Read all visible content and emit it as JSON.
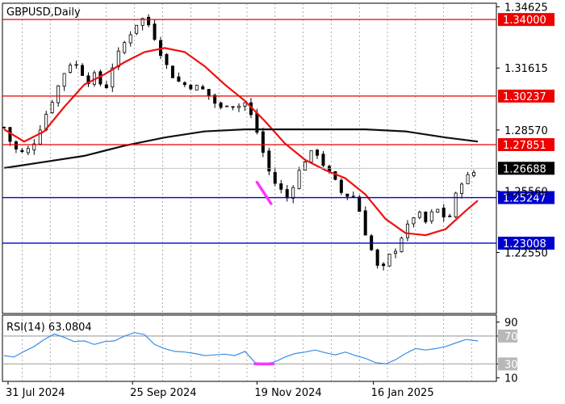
{
  "chart_data": [
    {
      "type": "candlestick",
      "symbol_label": "GBPUSD,Daily",
      "ylim": [
        1.1955,
        1.348
      ],
      "y_ticks": [
        "1.34625",
        "1.31615",
        "1.28570",
        "1.25560",
        "1.22550"
      ],
      "x_ticks": [
        "31 Jul 2024",
        "25 Sep 2024",
        "19 Nov 2024",
        "16 Jan 2025"
      ],
      "current_price": "1.26688",
      "levels": [
        {
          "label": "1.34000",
          "value": 1.34,
          "color": "#ee0000"
        },
        {
          "label": "1.30237",
          "value": 1.30237,
          "color": "#ee0000"
        },
        {
          "label": "1.27851",
          "value": 1.27851,
          "color": "#ee0000"
        },
        {
          "label": "1.25247",
          "value": 1.25247,
          "color": "#0000cc"
        },
        {
          "label": "1.23008",
          "value": 1.23008,
          "color": "#0000cc"
        }
      ],
      "close_path": [
        [
          0,
          1.287
        ],
        [
          4,
          1.278
        ],
        [
          8,
          1.274
        ],
        [
          12,
          1.276
        ],
        [
          15,
          1.28
        ],
        [
          18,
          1.287
        ],
        [
          22,
          1.296
        ],
        [
          26,
          1.305
        ],
        [
          30,
          1.314
        ],
        [
          34,
          1.32
        ],
        [
          38,
          1.315
        ],
        [
          42,
          1.31
        ],
        [
          46,
          1.313
        ],
        [
          50,
          1.304
        ],
        [
          54,
          1.317
        ],
        [
          58,
          1.325
        ],
        [
          62,
          1.332
        ],
        [
          66,
          1.338
        ],
        [
          70,
          1.341
        ],
        [
          74,
          1.334
        ],
        [
          78,
          1.324
        ],
        [
          82,
          1.315
        ],
        [
          86,
          1.31
        ],
        [
          90,
          1.308
        ],
        [
          95,
          1.307
        ],
        [
          100,
          1.305
        ],
        [
          104,
          1.3
        ],
        [
          108,
          1.296
        ],
        [
          112,
          1.3
        ],
        [
          116,
          1.296
        ],
        [
          119,
          1.301
        ],
        [
          122,
          1.295
        ],
        [
          125,
          1.288
        ],
        [
          128,
          1.278
        ],
        [
          131,
          1.268
        ],
        [
          134,
          1.26
        ],
        [
          137,
          1.259
        ],
        [
          140,
          1.25
        ],
        [
          143,
          1.257
        ],
        [
          146,
          1.263
        ],
        [
          149,
          1.27
        ],
        [
          152,
          1.273
        ],
        [
          155,
          1.276
        ],
        [
          158,
          1.271
        ],
        [
          161,
          1.265
        ],
        [
          164,
          1.262
        ],
        [
          167,
          1.256
        ],
        [
          170,
          1.253
        ],
        [
          173,
          1.255
        ],
        [
          176,
          1.25
        ],
        [
          179,
          1.238
        ],
        [
          182,
          1.23
        ],
        [
          185,
          1.22
        ],
        [
          188,
          1.215
        ],
        [
          191,
          1.223
        ],
        [
          194,
          1.225
        ],
        [
          197,
          1.232
        ],
        [
          200,
          1.236
        ],
        [
          203,
          1.242
        ],
        [
          206,
          1.246
        ],
        [
          209,
          1.239
        ],
        [
          212,
          1.243
        ],
        [
          215,
          1.247
        ],
        [
          218,
          1.245
        ],
        [
          221,
          1.24
        ],
        [
          224,
          1.25
        ],
        [
          227,
          1.26
        ],
        [
          230,
          1.262
        ],
        [
          233,
          1.264
        ],
        [
          236,
          1.2669
        ]
      ],
      "series": [
        {
          "name": "",
          "color": "#ee1111",
          "points": [
            [
              0,
              1.286
            ],
            [
              10,
              1.28
            ],
            [
              20,
              1.285
            ],
            [
              30,
              1.297
            ],
            [
              40,
              1.308
            ],
            [
              50,
              1.313
            ],
            [
              60,
              1.319
            ],
            [
              70,
              1.324
            ],
            [
              80,
              1.326
            ],
            [
              90,
              1.324
            ],
            [
              100,
              1.317
            ],
            [
              110,
              1.308
            ],
            [
              120,
              1.3
            ],
            [
              130,
              1.29
            ],
            [
              140,
              1.279
            ],
            [
              150,
              1.271
            ],
            [
              160,
              1.266
            ],
            [
              170,
              1.262
            ],
            [
              180,
              1.254
            ],
            [
              190,
              1.242
            ],
            [
              200,
              1.235
            ],
            [
              210,
              1.234
            ],
            [
              220,
              1.237
            ],
            [
              230,
              1.246
            ],
            [
              236,
              1.251
            ]
          ]
        },
        {
          "name": "",
          "color": "#111111",
          "points": [
            [
              0,
              1.267
            ],
            [
              20,
              1.27
            ],
            [
              40,
              1.273
            ],
            [
              60,
              1.278
            ],
            [
              80,
              1.282
            ],
            [
              100,
              1.285
            ],
            [
              120,
              1.286
            ],
            [
              140,
              1.286
            ],
            [
              160,
              1.286
            ],
            [
              180,
              1.286
            ],
            [
              200,
              1.285
            ],
            [
              220,
              1.282
            ],
            [
              236,
              1.28
            ]
          ]
        }
      ],
      "annotations": [
        {
          "type": "segment",
          "color": "#ff33ff",
          "from": [
            126,
            1.26
          ],
          "to": [
            133,
            1.2495
          ]
        }
      ]
    },
    {
      "type": "line",
      "title": "RSI(14) 63.0804",
      "ylim": [
        5,
        100
      ],
      "y_ticks": [
        "90",
        "70",
        "30",
        "10"
      ],
      "levels": [
        70,
        30
      ],
      "series": [
        {
          "name": "",
          "color": "#3a8ee6",
          "points": [
            [
              0,
              42
            ],
            [
              5,
              40
            ],
            [
              10,
              48
            ],
            [
              15,
              55
            ],
            [
              20,
              65
            ],
            [
              25,
              73
            ],
            [
              30,
              68
            ],
            [
              35,
              62
            ],
            [
              40,
              63
            ],
            [
              45,
              58
            ],
            [
              50,
              62
            ],
            [
              55,
              63
            ],
            [
              60,
              70
            ],
            [
              65,
              75
            ],
            [
              70,
              72
            ],
            [
              75,
              58
            ],
            [
              80,
              52
            ],
            [
              85,
              48
            ],
            [
              90,
              47
            ],
            [
              95,
              45
            ],
            [
              100,
              42
            ],
            [
              105,
              43
            ],
            [
              110,
              44
            ],
            [
              115,
              42
            ],
            [
              120,
              48
            ],
            [
              125,
              32
            ],
            [
              130,
              30
            ],
            [
              135,
              33
            ],
            [
              140,
              40
            ],
            [
              145,
              45
            ],
            [
              150,
              47
            ],
            [
              155,
              50
            ],
            [
              160,
              46
            ],
            [
              165,
              43
            ],
            [
              170,
              47
            ],
            [
              175,
              42
            ],
            [
              180,
              38
            ],
            [
              185,
              32
            ],
            [
              190,
              30
            ],
            [
              195,
              36
            ],
            [
              200,
              45
            ],
            [
              205,
              52
            ],
            [
              210,
              50
            ],
            [
              215,
              52
            ],
            [
              220,
              55
            ],
            [
              225,
              60
            ],
            [
              230,
              65
            ],
            [
              236,
              63
            ]
          ]
        }
      ],
      "annotations": [
        {
          "type": "segment",
          "color": "#ff33ff",
          "from": [
            125,
            30
          ],
          "to": [
            134,
            30
          ]
        }
      ]
    }
  ],
  "time_range": {
    "start": 0,
    "end": 236
  }
}
